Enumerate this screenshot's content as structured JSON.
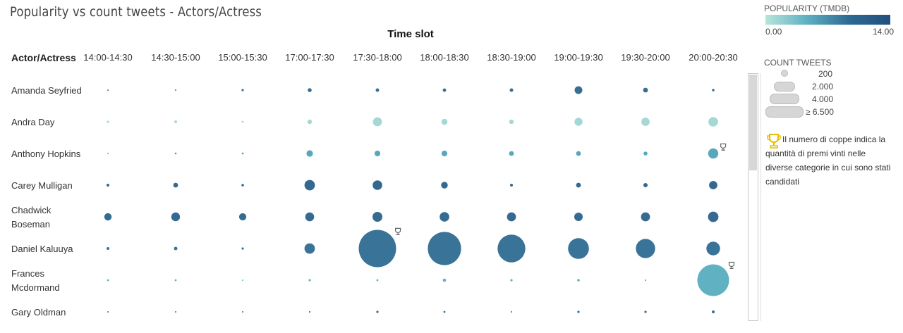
{
  "title": "Popularity vs count tweets - Actors/Actress",
  "legend": {
    "popularity_title": "POPULARITY (TMDB)",
    "popularity_min": "0.00",
    "popularity_max": "14.00",
    "count_title": "COUNT TWEETS",
    "count_labels": [
      "200",
      "2.000",
      "4.000",
      "≥ 6.500"
    ],
    "trophy_text": "Il numero di coppe indica la quantità di premi vinti nelle diverse categorie in cui sono stati candidati",
    "colors": {
      "low": "#b8e4db",
      "mid": "#5fb0c2",
      "high": "#24507e"
    }
  },
  "chart_data": {
    "type": "scatter",
    "xlabel": "Time slot",
    "row_header": "Actor/Actress",
    "time_slots": [
      "14:00-14:30",
      "14:30-15:00",
      "15:00-15:30",
      "17:00-17:30",
      "17:30-18:00",
      "18:00-18:30",
      "18:30-19:00",
      "19:00-19:30",
      "19:30-20:00",
      "20:00-20:30"
    ],
    "actors": [
      {
        "name": [
          "Amanda Seyfried"
        ],
        "popularity": 11.5,
        "tweets": [
          5,
          3,
          20,
          60,
          50,
          45,
          50,
          230,
          90,
          25
        ],
        "trophies": [
          0,
          0,
          0,
          0,
          0,
          0,
          0,
          0,
          0,
          0
        ]
      },
      {
        "name": [
          "Andra Day"
        ],
        "popularity": 1.5,
        "tweets": [
          20,
          30,
          15,
          80,
          320,
          140,
          80,
          250,
          270,
          360
        ],
        "trophies": [
          0,
          0,
          0,
          0,
          0,
          0,
          0,
          0,
          0,
          0
        ]
      },
      {
        "name": [
          "Anthony Hopkins"
        ],
        "popularity": 7,
        "tweets": [
          5,
          15,
          15,
          160,
          130,
          130,
          90,
          90,
          60,
          400
        ],
        "trophies": [
          0,
          0,
          0,
          0,
          0,
          0,
          0,
          0,
          0,
          1
        ]
      },
      {
        "name": [
          "Carey Mulligan"
        ],
        "popularity": 12,
        "tweets": [
          30,
          90,
          25,
          420,
          360,
          170,
          30,
          90,
          70,
          270
        ],
        "trophies": [
          0,
          0,
          0,
          0,
          0,
          0,
          0,
          0,
          0,
          0
        ]
      },
      {
        "name": [
          "Chadwick",
          "Boseman"
        ],
        "popularity": 11.8,
        "tweets": [
          210,
          300,
          200,
          310,
          380,
          360,
          320,
          280,
          320,
          420
        ],
        "trophies": [
          0,
          0,
          0,
          0,
          0,
          0,
          0,
          0,
          0,
          0
        ]
      },
      {
        "name": [
          "Daniel Kaluuya"
        ],
        "popularity": 11.2,
        "tweets": [
          30,
          50,
          20,
          420,
          5400,
          4300,
          3000,
          1700,
          1450,
          720
        ],
        "trophies": [
          0,
          0,
          0,
          0,
          1,
          0,
          0,
          0,
          0,
          0
        ]
      },
      {
        "name": [
          "Frances",
          "Mcdormand"
        ],
        "popularity": 6.2,
        "tweets": [
          15,
          15,
          5,
          20,
          15,
          40,
          20,
          25,
          10,
          3900
        ],
        "trophies": [
          0,
          0,
          0,
          0,
          0,
          0,
          0,
          0,
          0,
          1
        ]
      },
      {
        "name": [
          "Gary Oldman"
        ],
        "popularity": 11.5,
        "tweets": [
          5,
          3,
          5,
          10,
          20,
          15,
          5,
          20,
          20,
          30
        ],
        "trophies": [
          0,
          0,
          0,
          0,
          0,
          0,
          0,
          0,
          0,
          0
        ]
      }
    ],
    "popularity_range": [
      0,
      14
    ],
    "grid": false
  }
}
